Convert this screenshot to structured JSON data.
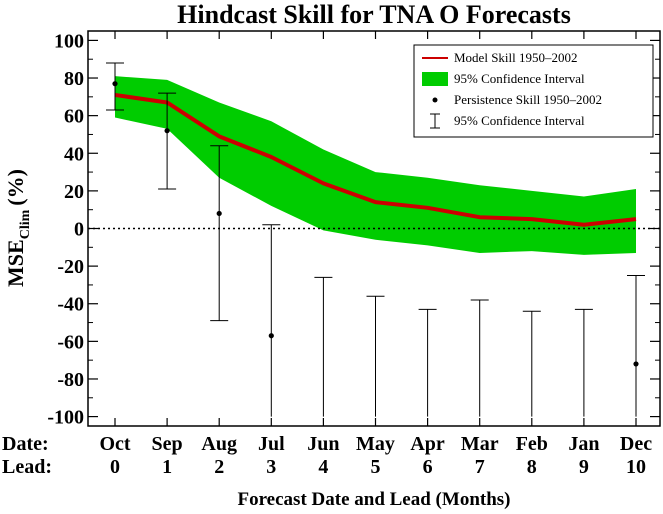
{
  "chart_data": {
    "type": "line",
    "title": "Hindcast Skill for TNA O Forecasts",
    "ylabel_main": "MSE",
    "ylabel_sub": "Clim",
    "ylabel_unit": "(%)",
    "xlabel": "Forecast Date and Lead (Months)",
    "row_labels": {
      "date": "Date:",
      "lead": "Lead:"
    },
    "categories": [
      "Oct",
      "Sep",
      "Aug",
      "Jul",
      "Jun",
      "May",
      "Apr",
      "Mar",
      "Feb",
      "Jan",
      "Dec"
    ],
    "leads": [
      "0",
      "1",
      "2",
      "3",
      "4",
      "5",
      "6",
      "7",
      "8",
      "9",
      "10"
    ],
    "x": [
      0,
      1,
      2,
      3,
      4,
      5,
      6,
      7,
      8,
      9,
      10
    ],
    "ylim": [
      -105,
      105
    ],
    "yticks": [
      100,
      80,
      60,
      40,
      20,
      0,
      -20,
      -40,
      -60,
      -80,
      -100
    ],
    "reference_line": 0,
    "series": [
      {
        "name": "Model Skill 1950–2002",
        "color": "#cc0000",
        "values": [
          71,
          67,
          49,
          38,
          24,
          14,
          11,
          6,
          5,
          2,
          5
        ],
        "band_name": "95% Confidence Interval",
        "band_color": "#00cc00",
        "band_lower": [
          59,
          53,
          27,
          12,
          -1,
          -6,
          -9,
          -13,
          -12,
          -14,
          -13
        ],
        "band_upper": [
          81,
          79,
          67,
          57,
          42,
          30,
          27,
          23,
          20,
          17,
          21
        ]
      },
      {
        "name": "Persistence Skill 1950–2002",
        "color": "#000000",
        "values": [
          77,
          52,
          8,
          -57,
          null,
          null,
          null,
          null,
          null,
          null,
          -72
        ],
        "errorbar_name": "95% Confidence Interval",
        "errorbar_lower": [
          63,
          21,
          -49,
          -100,
          -100,
          -100,
          -100,
          -100,
          -100,
          -100,
          -100
        ],
        "errorbar_upper": [
          88,
          72,
          44,
          2,
          -26,
          -36,
          -43,
          -38,
          -44,
          -43,
          -25
        ]
      }
    ],
    "legend": {
      "position": "top-right",
      "entries": [
        {
          "label": "Model Skill 1950–2002",
          "symbol": "line"
        },
        {
          "label": "95% Confidence Interval",
          "symbol": "band"
        },
        {
          "label": "Persistence Skill 1950–2002",
          "symbol": "dot"
        },
        {
          "label": "95% Confidence Interval",
          "symbol": "errorbar"
        }
      ]
    }
  }
}
